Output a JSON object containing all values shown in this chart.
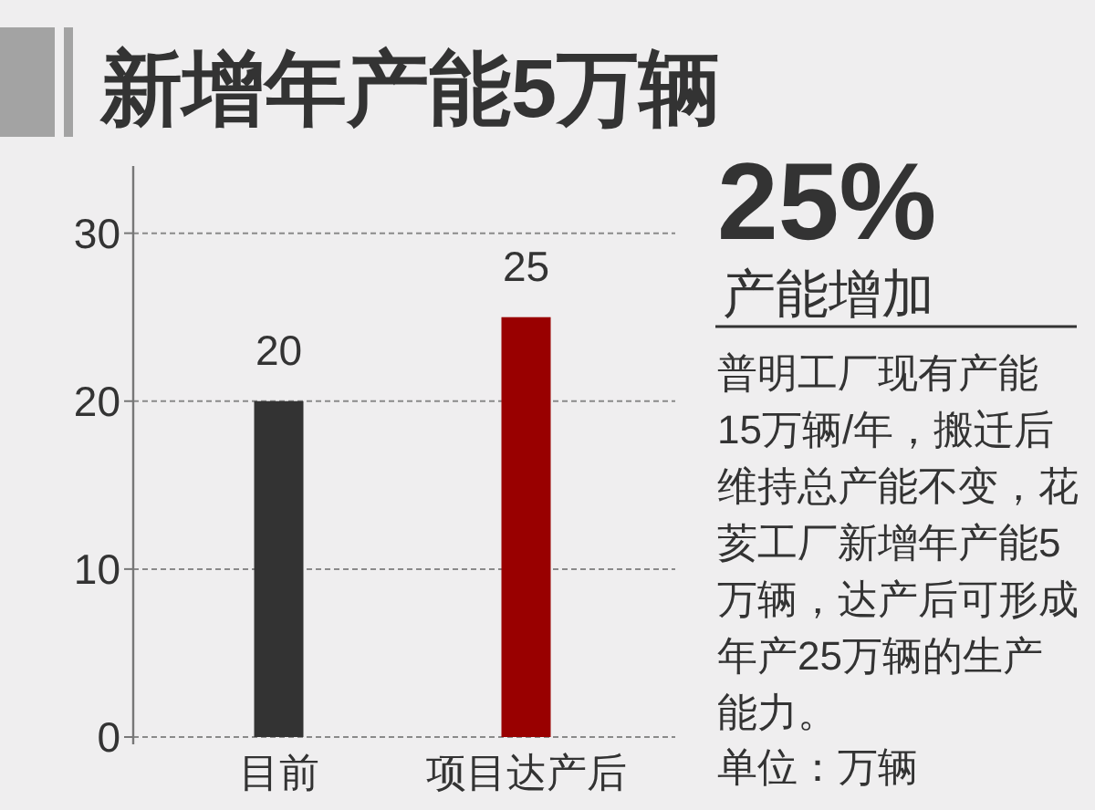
{
  "chart_data": [
    {
      "type": "bar",
      "title": "新增年产能5万辆",
      "categories": [
        "目前",
        "项目达产后"
      ],
      "values": [
        20,
        25
      ],
      "colors": [
        "#333333",
        "#990000"
      ],
      "ylim": [
        0,
        34
      ],
      "yticks": [
        0,
        10,
        20,
        30
      ],
      "grid": "y",
      "data_labels": true
    },
    {
      "type": "other",
      "title": "25%",
      "subtitle": "产能增加",
      "annotations": [
        "普明工厂现有产能15万辆/年，搬迁后维持总产能不变，花荄工厂新增年产能5万辆，达产后可形成年产25万辆的生产能力。",
        "单位：万辆"
      ]
    }
  ]
}
